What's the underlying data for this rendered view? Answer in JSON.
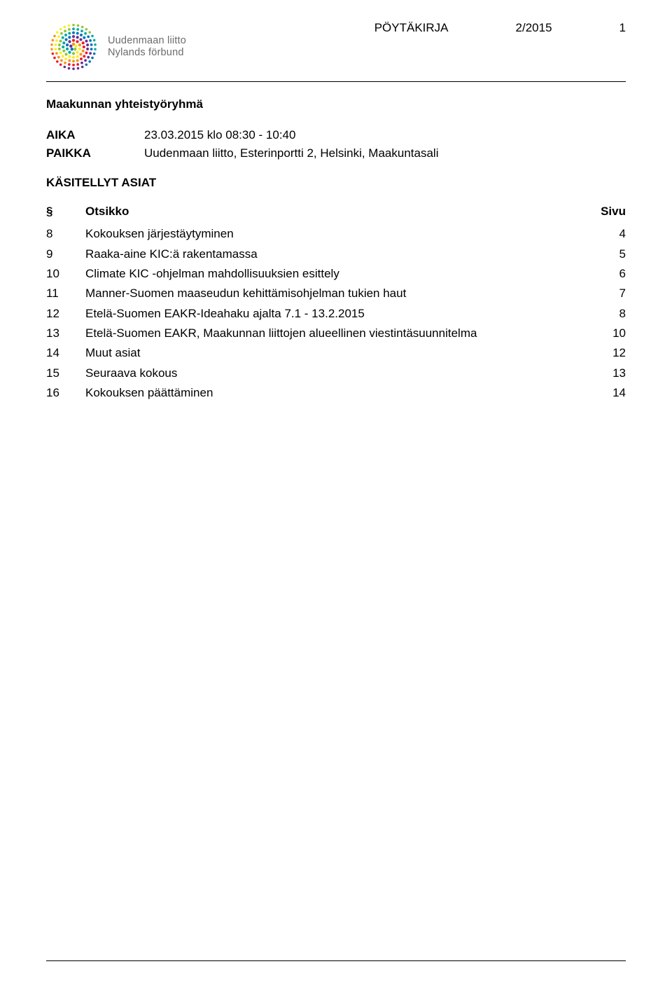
{
  "logo": {
    "line1": "Uudenmaan liitto",
    "line2": "Nylands förbund",
    "text_color": "#6b6b6b",
    "ring_colors": [
      "#8cc63f",
      "#00a99d",
      "#0071bc",
      "#662d91",
      "#ed1c24",
      "#f7931e",
      "#fcee21"
    ]
  },
  "header": {
    "doc_type": "PÖYTÄKIRJA",
    "doc_number": "2/2015",
    "page_number": "1"
  },
  "title": "Maakunnan yhteistyöryhmä",
  "meta": {
    "aika_label": "AIKA",
    "aika_value": "23.03.2015 klo 08:30 - 10:40",
    "paikka_label": "PAIKKA",
    "paikka_value": "Uudenmaan liitto, Esterinportti 2, Helsinki, Maakuntasali"
  },
  "agenda_section_title": "KÄSITELLYT ASIAT",
  "agenda_header": {
    "symbol": "§",
    "title": "Otsikko",
    "page": "Sivu"
  },
  "agenda": [
    {
      "num": "8",
      "title": "Kokouksen järjestäytyminen",
      "page": "4"
    },
    {
      "num": "9",
      "title": "Raaka-aine KIC:ä rakentamassa",
      "page": "5"
    },
    {
      "num": "10",
      "title": "Climate KIC -ohjelman mahdollisuuksien esittely",
      "page": "6"
    },
    {
      "num": "11",
      "title": "Manner-Suomen maaseudun kehittämisohjelman tukien haut",
      "page": "7"
    },
    {
      "num": "12",
      "title": "Etelä-Suomen EAKR-Ideahaku ajalta 7.1 - 13.2.2015",
      "page": "8"
    },
    {
      "num": "13",
      "title": "Etelä-Suomen EAKR, Maakunnan liittojen alueellinen viestintäsuunnitelma",
      "page": "10"
    },
    {
      "num": "14",
      "title": "Muut asiat",
      "page": "12"
    },
    {
      "num": "15",
      "title": "Seuraava kokous",
      "page": "13"
    },
    {
      "num": "16",
      "title": "Kokouksen päättäminen",
      "page": "14"
    }
  ]
}
